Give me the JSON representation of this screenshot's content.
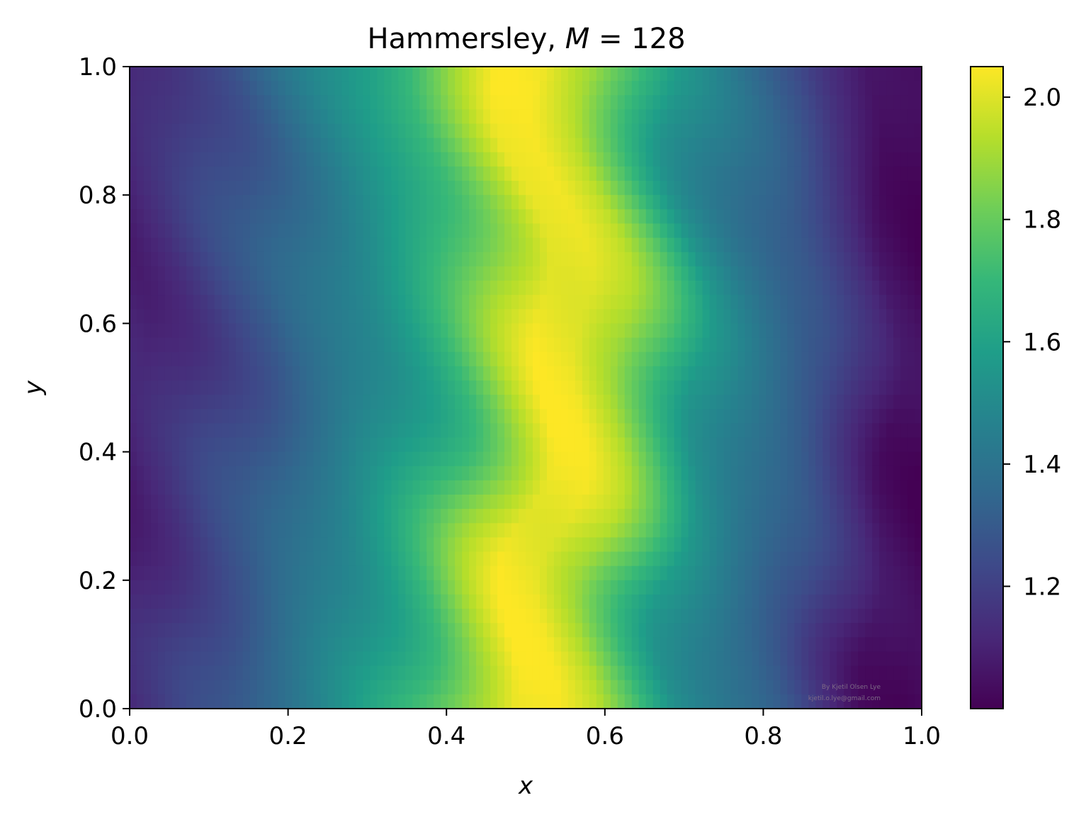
{
  "chart_data": {
    "type": "heatmap",
    "title": "Hammersley, M = 128",
    "title_parts": {
      "prefix": "Hammersley, ",
      "var": "M",
      "rest": " = 128"
    },
    "xlabel": "x",
    "ylabel": "y",
    "xlim": [
      0.0,
      1.0
    ],
    "ylim": [
      0.0,
      1.0
    ],
    "x_ticks": [
      "0.0",
      "0.2",
      "0.4",
      "0.6",
      "0.8",
      "1.0"
    ],
    "y_ticks": [
      "0.0",
      "0.2",
      "0.4",
      "0.6",
      "0.8",
      "1.0"
    ],
    "grid": false,
    "colormap": "viridis",
    "colorbar": {
      "range": [
        1.0,
        2.05
      ],
      "ticks": [
        "1.2",
        "1.4",
        "1.6",
        "1.8",
        "2.0"
      ]
    },
    "field_profile": {
      "description_of_values": "approximate value of the field along x (rows roughly constant, peak near x=0.5)",
      "x": [
        0.0,
        0.05,
        0.1,
        0.15,
        0.2,
        0.25,
        0.3,
        0.35,
        0.4,
        0.45,
        0.5,
        0.55,
        0.6,
        0.65,
        0.7,
        0.75,
        0.8,
        0.85,
        0.9,
        0.95,
        1.0
      ],
      "value": [
        1.1,
        1.15,
        1.22,
        1.28,
        1.36,
        1.44,
        1.52,
        1.62,
        1.74,
        1.9,
        2.03,
        2.02,
        1.92,
        1.74,
        1.55,
        1.45,
        1.36,
        1.28,
        1.16,
        1.05,
        1.02
      ]
    },
    "watermark": [
      "By Kjetil Olsen Lye",
      "kjetil.o.lye@gmail.com"
    ]
  }
}
